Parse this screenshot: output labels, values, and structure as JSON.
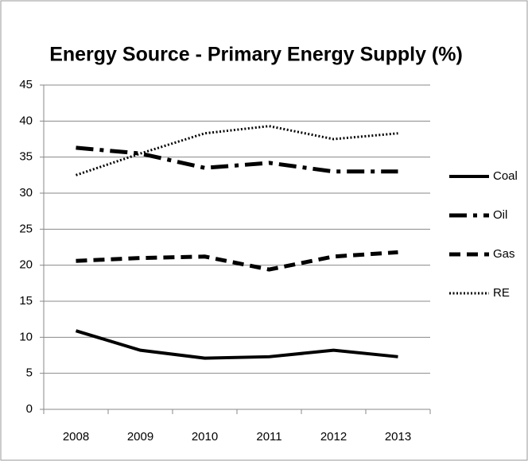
{
  "chart_data": {
    "type": "line",
    "title": "Energy Source - Primary Energy Supply (%)",
    "categories": [
      "2008",
      "2009",
      "2010",
      "2011",
      "2012",
      "2013"
    ],
    "series": [
      {
        "name": "Coal",
        "color": "#000000",
        "dash": "solid",
        "values": [
          10.9,
          8.2,
          7.1,
          7.3,
          8.2,
          7.3
        ]
      },
      {
        "name": "Oil",
        "color": "#000000",
        "dash": "dash-dot",
        "values": [
          36.3,
          35.5,
          33.5,
          34.2,
          33.0,
          33.0
        ]
      },
      {
        "name": "Gas",
        "color": "#000000",
        "dash": "dashed",
        "values": [
          20.6,
          21.0,
          21.2,
          19.4,
          21.2,
          21.8
        ]
      },
      {
        "name": "RE",
        "color": "#000000",
        "dash": "dotted",
        "values": [
          32.5,
          35.5,
          38.3,
          39.3,
          37.5,
          38.3
        ]
      }
    ],
    "ylim": [
      0,
      45
    ],
    "yticks": [
      0,
      5,
      10,
      15,
      20,
      25,
      30,
      35,
      40,
      45
    ],
    "grid": true,
    "legend": "right"
  }
}
